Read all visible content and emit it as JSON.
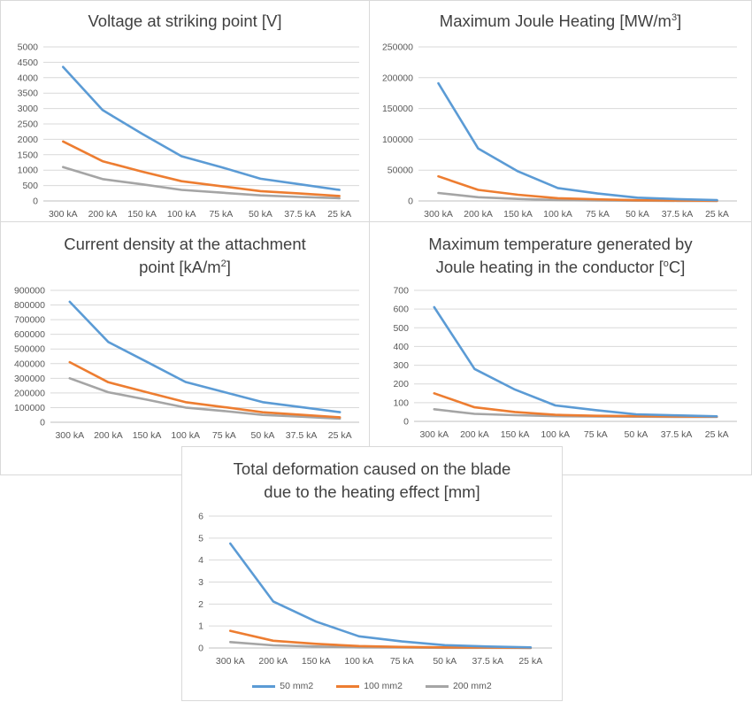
{
  "categories": [
    "300 kA",
    "200 kA",
    "150 kA",
    "100 kA",
    "75 kA",
    "50 kA",
    "37.5 kA",
    "25 kA"
  ],
  "series_names": [
    "50 mm2",
    "100 mm2",
    "200 mm2"
  ],
  "colors": [
    "#5b9bd5",
    "#ed7d31",
    "#a5a5a5"
  ],
  "chart_data": [
    {
      "type": "line",
      "title": "Voltage at striking point [V]",
      "title_main": "Voltage at striking point [V]",
      "title_sup": "",
      "title_tail": "",
      "categories": [
        "300 kA",
        "200 kA",
        "150 kA",
        "100 kA",
        "75 kA",
        "50 kA",
        "37.5 kA",
        "25 kA"
      ],
      "ylim": [
        0,
        5000
      ],
      "yticks": [
        "0",
        "500",
        "1000",
        "1500",
        "2000",
        "2500",
        "3000",
        "3500",
        "4000",
        "4500",
        "5000"
      ],
      "series": [
        {
          "name": "50 mm2",
          "values": [
            4350,
            2950,
            2180,
            1450,
            1100,
            720,
            540,
            360
          ]
        },
        {
          "name": "100 mm2",
          "values": [
            1930,
            1290,
            950,
            640,
            480,
            320,
            240,
            160
          ]
        },
        {
          "name": "200 mm2",
          "values": [
            1100,
            710,
            540,
            360,
            270,
            180,
            130,
            90
          ]
        }
      ],
      "grid": true
    },
    {
      "type": "line",
      "title": "Maximum Joule Heating [MW/m3]",
      "title_main": "Maximum Joule Heating [MW/m",
      "title_sup": "3",
      "title_tail": "]",
      "categories": [
        "300 kA",
        "200 kA",
        "150 kA",
        "100 kA",
        "75 kA",
        "50 kA",
        "37.5 kA",
        "25 kA"
      ],
      "ylim": [
        0,
        250000
      ],
      "yticks": [
        "0",
        "50000",
        "100000",
        "150000",
        "200000",
        "250000"
      ],
      "series": [
        {
          "name": "50 mm2",
          "values": [
            191000,
            85000,
            48000,
            21000,
            12000,
            5300,
            3000,
            1300
          ]
        },
        {
          "name": "100 mm2",
          "values": [
            40000,
            18000,
            10000,
            4500,
            2600,
            1100,
            650,
            280
          ]
        },
        {
          "name": "200 mm2",
          "values": [
            13000,
            6000,
            3300,
            1500,
            850,
            380,
            210,
            95
          ]
        }
      ],
      "grid": true
    },
    {
      "type": "line",
      "title": "Current density at the attachment point [kA/m2]",
      "title_main": "Current density at the attachment",
      "title_line2": "point [kA/m",
      "title_sup": "2",
      "title_tail": "]",
      "categories": [
        "300 kA",
        "200 kA",
        "150 kA",
        "100 kA",
        "75 kA",
        "50 kA",
        "37.5 kA",
        "25 kA"
      ],
      "ylim": [
        0,
        900000
      ],
      "yticks": [
        "0",
        "100000",
        "200000",
        "300000",
        "400000",
        "500000",
        "600000",
        "700000",
        "800000",
        "900000"
      ],
      "series": [
        {
          "name": "50 mm2",
          "values": [
            822000,
            548000,
            412000,
            275000,
            206000,
            137000,
            103000,
            69000
          ]
        },
        {
          "name": "100 mm2",
          "values": [
            410000,
            273000,
            205000,
            137000,
            103000,
            68000,
            51000,
            34000
          ]
        },
        {
          "name": "200 mm2",
          "values": [
            300000,
            205000,
            154000,
            100000,
            77000,
            50000,
            38000,
            25000
          ]
        }
      ],
      "grid": true
    },
    {
      "type": "line",
      "title": "Maximum temperature generated by Joule heating in the conductor [oC]",
      "title_main": "Maximum temperature generated by",
      "title_line2": "Joule heating in the conductor [",
      "title_sup": "o",
      "title_tail": "C]",
      "categories": [
        "300 kA",
        "200 kA",
        "150 kA",
        "100 kA",
        "75 kA",
        "50 kA",
        "37.5 kA",
        "25 kA"
      ],
      "ylim": [
        0,
        700
      ],
      "yticks": [
        "0",
        "100",
        "200",
        "300",
        "400",
        "500",
        "600",
        "700"
      ],
      "series": [
        {
          "name": "50 mm2",
          "values": [
            610,
            280,
            170,
            85,
            60,
            38,
            32,
            27
          ]
        },
        {
          "name": "100 mm2",
          "values": [
            150,
            75,
            50,
            35,
            30,
            28,
            26,
            25
          ]
        },
        {
          "name": "200 mm2",
          "values": [
            65,
            40,
            33,
            28,
            26,
            25,
            24,
            24
          ]
        }
      ],
      "grid": true
    },
    {
      "type": "line",
      "title": "Total deformation caused on the blade due to the heating effect [mm]",
      "title_main": "Total deformation caused on the blade",
      "title_line2": "due to the heating effect [mm]",
      "title_sup": "",
      "title_tail": "",
      "categories": [
        "300 kA",
        "200 kA",
        "150 kA",
        "100 kA",
        "75 kA",
        "50 kA",
        "37.5 kA",
        "25 kA"
      ],
      "ylim": [
        0,
        6
      ],
      "yticks": [
        "0",
        "1",
        "2",
        "3",
        "4",
        "5",
        "6"
      ],
      "series": [
        {
          "name": "50 mm2",
          "values": [
            4.75,
            2.12,
            1.2,
            0.53,
            0.3,
            0.13,
            0.07,
            0.03
          ]
        },
        {
          "name": "100 mm2",
          "values": [
            0.78,
            0.33,
            0.19,
            0.09,
            0.05,
            0.03,
            0.02,
            0.01
          ]
        },
        {
          "name": "200 mm2",
          "values": [
            0.27,
            0.12,
            0.07,
            0.03,
            0.02,
            0.01,
            0.01,
            0.0
          ]
        }
      ],
      "grid": true,
      "legend": "bottom"
    }
  ]
}
